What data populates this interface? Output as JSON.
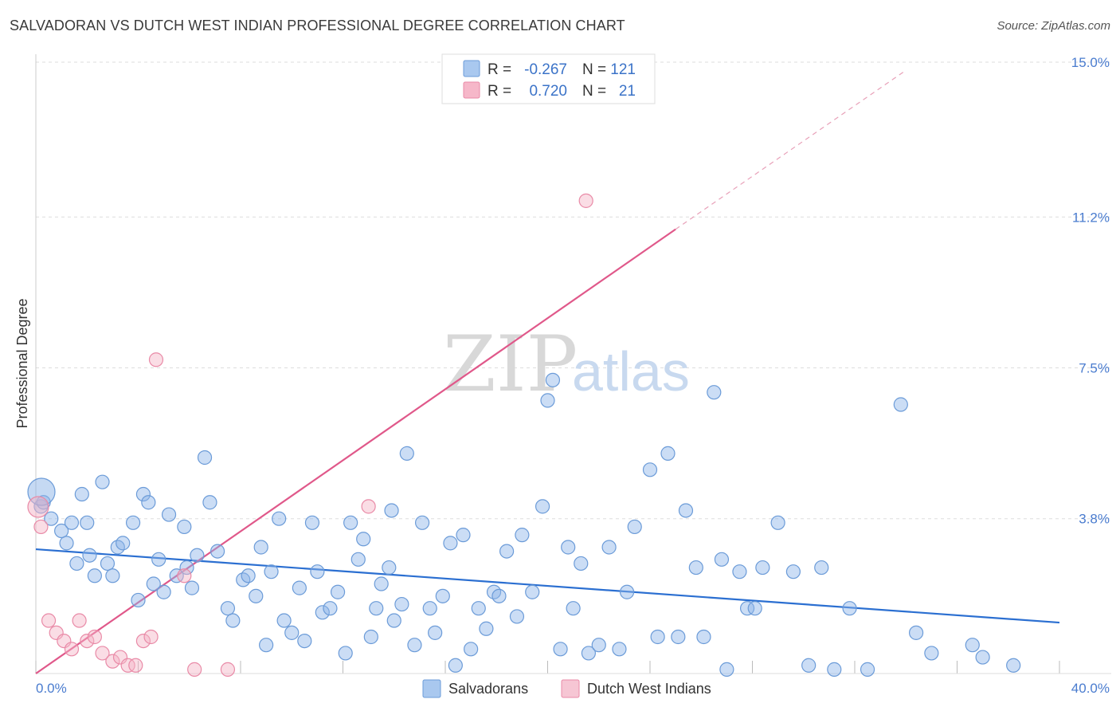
{
  "header": {
    "title": "SALVADORAN VS DUTCH WEST INDIAN PROFESSIONAL DEGREE CORRELATION CHART",
    "source": "Source: ZipAtlas.com"
  },
  "watermark": {
    "zip": "ZIP",
    "atlas": "atlas"
  },
  "chart_data": {
    "type": "scatter",
    "title": "SALVADORAN VS DUTCH WEST INDIAN PROFESSIONAL DEGREE CORRELATION CHART",
    "xlabel": "",
    "ylabel": "Professional Degree",
    "xlim": [
      0,
      40
    ],
    "ylim": [
      0,
      15
    ],
    "x_tick_labels": [
      {
        "value": 0,
        "label": "0.0%"
      },
      {
        "value": 40,
        "label": "40.0%"
      }
    ],
    "y_tick_labels": [
      {
        "value": 3.8,
        "label": "3.8%"
      },
      {
        "value": 7.5,
        "label": "7.5%"
      },
      {
        "value": 11.2,
        "label": "11.2%"
      },
      {
        "value": 15.0,
        "label": "15.0%"
      }
    ],
    "legend_box": {
      "rows": [
        {
          "r_label": "R =",
          "r_value": "-0.267",
          "n_label": "N =",
          "n_value": "121",
          "color": "#a9c8ef"
        },
        {
          "r_label": "R =",
          "r_value": "0.720",
          "n_label": "N =",
          "n_value": "21",
          "color": "#f6b7c9"
        }
      ]
    },
    "series": [
      {
        "name": "Salvadorans",
        "color": "#8cb4e8",
        "stroke": "#6b9bd8",
        "trend": {
          "x0": 0,
          "y0": 3.05,
          "x1": 40,
          "y1": 1.25,
          "color": "#2b6fd1"
        },
        "points": [
          [
            0.2,
            4.1
          ],
          [
            0.6,
            3.8
          ],
          [
            1.0,
            3.5
          ],
          [
            1.2,
            3.2
          ],
          [
            1.4,
            3.7
          ],
          [
            1.6,
            2.7
          ],
          [
            1.8,
            4.4
          ],
          [
            2.0,
            3.7
          ],
          [
            2.3,
            2.4
          ],
          [
            2.6,
            4.7
          ],
          [
            2.8,
            2.7
          ],
          [
            3.0,
            2.4
          ],
          [
            3.2,
            3.1
          ],
          [
            3.4,
            3.2
          ],
          [
            3.8,
            3.7
          ],
          [
            4.0,
            1.8
          ],
          [
            4.2,
            4.4
          ],
          [
            4.4,
            4.2
          ],
          [
            4.6,
            2.2
          ],
          [
            4.8,
            2.8
          ],
          [
            5.0,
            2.0
          ],
          [
            5.2,
            3.9
          ],
          [
            5.5,
            2.4
          ],
          [
            5.8,
            3.6
          ],
          [
            6.1,
            2.1
          ],
          [
            6.3,
            2.9
          ],
          [
            6.6,
            5.3
          ],
          [
            6.8,
            4.2
          ],
          [
            7.1,
            3.0
          ],
          [
            7.5,
            1.6
          ],
          [
            7.7,
            1.3
          ],
          [
            8.1,
            2.3
          ],
          [
            8.3,
            2.4
          ],
          [
            8.6,
            1.9
          ],
          [
            8.8,
            3.1
          ],
          [
            9.0,
            0.7
          ],
          [
            9.2,
            2.5
          ],
          [
            9.5,
            3.8
          ],
          [
            9.7,
            1.3
          ],
          [
            10.0,
            1.0
          ],
          [
            10.3,
            2.1
          ],
          [
            10.5,
            0.8
          ],
          [
            10.8,
            3.7
          ],
          [
            11.0,
            2.5
          ],
          [
            11.2,
            1.5
          ],
          [
            11.5,
            1.6
          ],
          [
            11.8,
            2.0
          ],
          [
            12.1,
            0.5
          ],
          [
            12.3,
            3.7
          ],
          [
            12.6,
            2.8
          ],
          [
            12.8,
            3.3
          ],
          [
            13.1,
            0.9
          ],
          [
            13.3,
            1.6
          ],
          [
            13.5,
            2.2
          ],
          [
            13.8,
            2.6
          ],
          [
            14.0,
            1.3
          ],
          [
            14.3,
            1.7
          ],
          [
            14.5,
            5.4
          ],
          [
            14.8,
            0.7
          ],
          [
            15.1,
            3.7
          ],
          [
            15.4,
            1.6
          ],
          [
            15.6,
            1.0
          ],
          [
            15.9,
            1.9
          ],
          [
            16.2,
            3.2
          ],
          [
            16.4,
            0.2
          ],
          [
            16.7,
            3.4
          ],
          [
            17.0,
            0.6
          ],
          [
            17.3,
            1.6
          ],
          [
            17.6,
            1.1
          ],
          [
            17.9,
            2.0
          ],
          [
            18.1,
            1.9
          ],
          [
            18.4,
            3.0
          ],
          [
            18.8,
            1.4
          ],
          [
            19.0,
            3.4
          ],
          [
            19.4,
            2.0
          ],
          [
            19.8,
            4.1
          ],
          [
            20.0,
            6.7
          ],
          [
            20.2,
            7.2
          ],
          [
            20.5,
            0.6
          ],
          [
            20.8,
            3.1
          ],
          [
            21.0,
            1.6
          ],
          [
            21.3,
            2.7
          ],
          [
            21.6,
            0.5
          ],
          [
            22.0,
            0.7
          ],
          [
            22.4,
            3.1
          ],
          [
            22.8,
            0.6
          ],
          [
            23.1,
            2.0
          ],
          [
            23.4,
            3.6
          ],
          [
            24.0,
            5.0
          ],
          [
            24.3,
            0.9
          ],
          [
            24.7,
            5.4
          ],
          [
            25.1,
            0.9
          ],
          [
            25.4,
            4.0
          ],
          [
            25.8,
            2.6
          ],
          [
            26.1,
            0.9
          ],
          [
            26.5,
            6.9
          ],
          [
            27.0,
            0.1
          ],
          [
            27.5,
            2.5
          ],
          [
            27.8,
            1.6
          ],
          [
            28.1,
            1.6
          ],
          [
            28.4,
            2.6
          ],
          [
            29.0,
            3.7
          ],
          [
            29.6,
            2.5
          ],
          [
            30.2,
            0.2
          ],
          [
            30.7,
            2.6
          ],
          [
            31.2,
            0.1
          ],
          [
            31.8,
            1.6
          ],
          [
            32.5,
            0.1
          ],
          [
            33.8,
            6.6
          ],
          [
            34.4,
            1.0
          ],
          [
            35.0,
            0.5
          ],
          [
            36.6,
            0.7
          ],
          [
            37.0,
            0.4
          ],
          [
            38.2,
            0.2
          ],
          [
            0.3,
            4.2
          ],
          [
            2.1,
            2.9
          ],
          [
            5.9,
            2.6
          ],
          [
            13.9,
            4.0
          ],
          [
            26.8,
            2.8
          ]
        ]
      },
      {
        "name": "Dutch West Indians",
        "color": "#f4b3c6",
        "stroke": "#e98aa7",
        "trend": {
          "x0": 0,
          "y0": 0,
          "x1": 25,
          "y1": 10.9,
          "x_dash_end": 34,
          "y_dash_end": 14.8,
          "color": "#e0588a"
        },
        "points": [
          [
            0.5,
            1.3
          ],
          [
            0.8,
            1.0
          ],
          [
            1.1,
            0.8
          ],
          [
            1.4,
            0.6
          ],
          [
            1.7,
            1.3
          ],
          [
            2.0,
            0.8
          ],
          [
            2.3,
            0.9
          ],
          [
            2.6,
            0.5
          ],
          [
            3.0,
            0.3
          ],
          [
            3.3,
            0.4
          ],
          [
            3.6,
            0.2
          ],
          [
            3.9,
            0.2
          ],
          [
            4.2,
            0.8
          ],
          [
            4.5,
            0.9
          ],
          [
            4.7,
            7.7
          ],
          [
            5.8,
            2.4
          ],
          [
            6.2,
            0.1
          ],
          [
            7.5,
            0.1
          ],
          [
            13.0,
            4.1
          ],
          [
            21.5,
            11.6
          ],
          [
            0.2,
            3.6
          ]
        ]
      }
    ]
  }
}
